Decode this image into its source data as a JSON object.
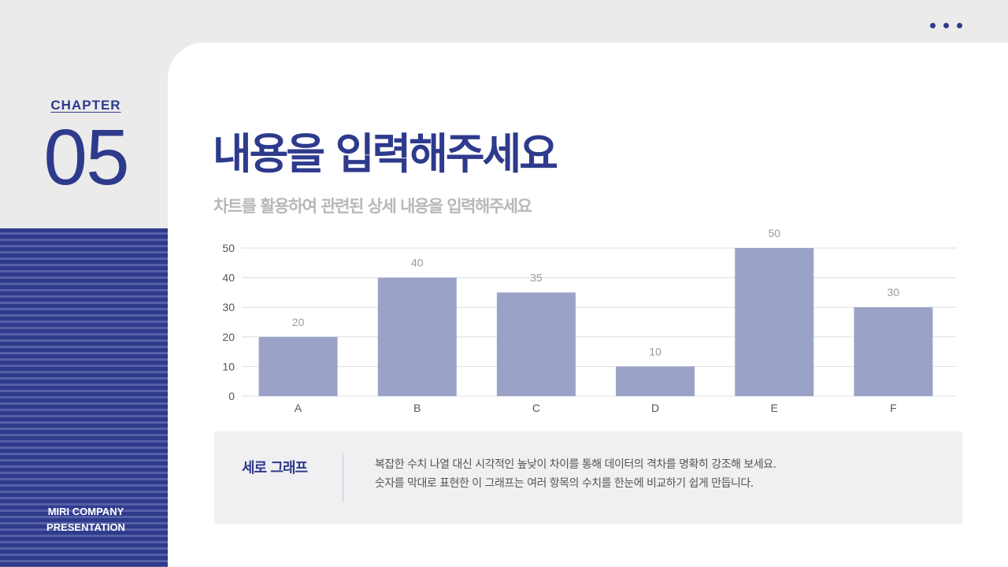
{
  "colors": {
    "accent": "#2e3a8c",
    "bar": "#9ba2c8",
    "grid": "#dcdde3",
    "muted": "#b8b8b8"
  },
  "chapter": {
    "label": "CHAPTER",
    "number": "05"
  },
  "company": {
    "line1": "MIRI COMPANY",
    "line2": "PRESENTATION"
  },
  "title": "내용을 입력해주세요",
  "subtitle": "차트를 활용하여 관련된 상세 내용을 입력해주세요",
  "chart_data": {
    "type": "bar",
    "categories": [
      "A",
      "B",
      "C",
      "D",
      "E",
      "F"
    ],
    "values": [
      20,
      40,
      35,
      10,
      50,
      30
    ],
    "ylim": [
      0,
      50
    ],
    "yticks": [
      0,
      10,
      20,
      30,
      40,
      50
    ],
    "grid": true,
    "data_labels": true
  },
  "info": {
    "title": "세로 그래프",
    "line1": "복잡한 수치 나열 대신 시각적인 높낮이 차이를 통해 데이터의 격차를 명확히 강조해 보세요.",
    "line2": "숫자를 막대로 표현한 이 그래프는 여러 항목의 수치를 한눈에 비교하기 쉽게 만듭니다."
  }
}
